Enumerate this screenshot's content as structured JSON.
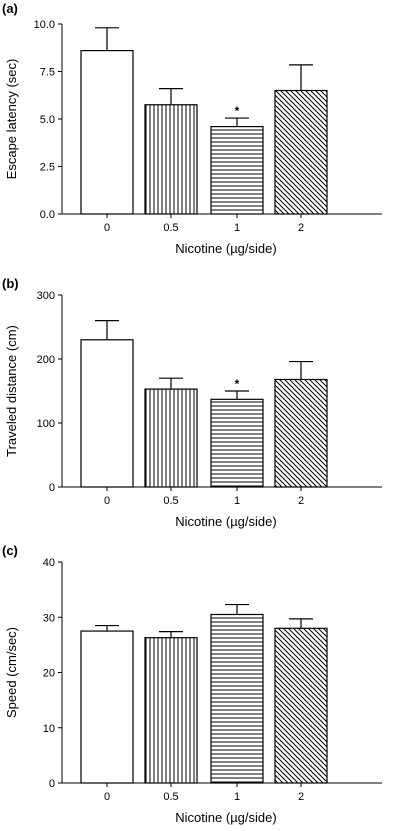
{
  "chart_data": [
    {
      "panel": "(a)",
      "type": "bar",
      "categories": [
        "0",
        "0.5",
        "1",
        "2"
      ],
      "values": [
        8.6,
        5.75,
        4.6,
        6.5
      ],
      "errors": [
        1.2,
        0.85,
        0.45,
        1.35
      ],
      "significance": [
        "",
        "",
        "*",
        ""
      ],
      "xlabel": "Nicotine (µg/side)",
      "ylabel": "Escape latency (sec)",
      "ylim": [
        0,
        10.0
      ],
      "yticks": [
        "0.0",
        "2.5",
        "5.0",
        "7.5",
        "10.0"
      ],
      "patterns": [
        "none",
        "vertical",
        "horizontal",
        "diagonal"
      ]
    },
    {
      "panel": "(b)",
      "type": "bar",
      "categories": [
        "0",
        "0.5",
        "1",
        "2"
      ],
      "values": [
        230,
        153,
        137,
        168
      ],
      "errors": [
        30,
        17,
        13,
        28
      ],
      "significance": [
        "",
        "",
        "*",
        ""
      ],
      "xlabel": "Nicotine (µg/side)",
      "ylabel": "Traveled distance (cm)",
      "ylim": [
        0,
        300
      ],
      "yticks": [
        "0",
        "100",
        "200",
        "300"
      ],
      "patterns": [
        "none",
        "vertical",
        "horizontal",
        "diagonal"
      ]
    },
    {
      "panel": "(c)",
      "type": "bar",
      "categories": [
        "0",
        "0.5",
        "1",
        "2"
      ],
      "values": [
        27.5,
        26.3,
        30.5,
        28.0
      ],
      "errors": [
        1.0,
        1.1,
        1.8,
        1.7
      ],
      "significance": [
        "",
        "",
        "",
        ""
      ],
      "xlabel": "Nicotine (µg/side)",
      "ylabel": "Speed (cm/sec)",
      "ylim": [
        0,
        40
      ],
      "yticks": [
        "0",
        "10",
        "20",
        "30",
        "40"
      ],
      "patterns": [
        "none",
        "vertical",
        "horizontal",
        "diagonal"
      ]
    }
  ]
}
